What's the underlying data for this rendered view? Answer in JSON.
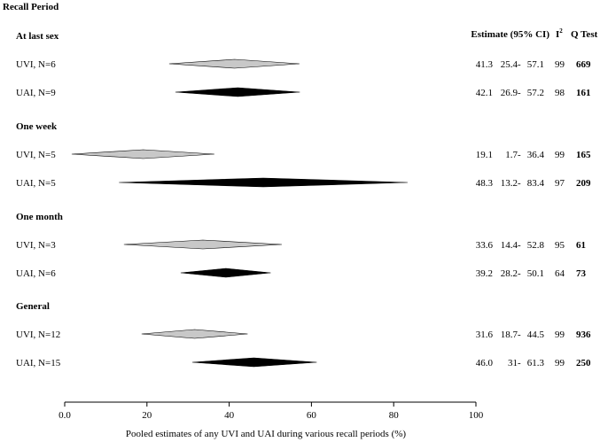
{
  "chart_data": {
    "type": "forest",
    "title": "Recall Period",
    "xlabel": "Pooled estimates of any UVI and UAI during various recall periods (%)",
    "xlim": [
      0,
      100
    ],
    "xticks": [
      "0.0",
      "20",
      "40",
      "60",
      "80",
      "100"
    ],
    "column_headers": {
      "estimate": "Estimate (95% CI)",
      "i2": "I",
      "i2_sup": "2",
      "q": "Q Test"
    },
    "series": [
      {
        "name": "UVI",
        "color": "#c8c8c8"
      },
      {
        "name": "UAI",
        "color": "#000000"
      }
    ],
    "groups": [
      {
        "label": "At last sex",
        "rows": [
          {
            "label": "UVI, N=6",
            "series": "UVI",
            "estimate": 41.3,
            "low": 25.4,
            "high": 57.1,
            "est_text": "41.3",
            "low_text": "25.4",
            "high_text": "57.1",
            "i2": "99",
            "q": "669"
          },
          {
            "label": "UAI, N=9",
            "series": "UAI",
            "estimate": 42.1,
            "low": 26.9,
            "high": 57.2,
            "est_text": "42.1",
            "low_text": "26.9",
            "high_text": "57.2",
            "i2": "98",
            "q": "161"
          }
        ]
      },
      {
        "label": "One week",
        "rows": [
          {
            "label": "UVI, N=5",
            "series": "UVI",
            "estimate": 19.1,
            "low": 1.7,
            "high": 36.4,
            "est_text": "19.1",
            "low_text": "1.7",
            "high_text": "36.4",
            "i2": "99",
            "q": "165"
          },
          {
            "label": "UAI, N=5",
            "series": "UAI",
            "estimate": 48.3,
            "low": 13.2,
            "high": 83.4,
            "est_text": "48.3",
            "low_text": "13.2",
            "high_text": "83.4",
            "i2": "97",
            "q": "209"
          }
        ]
      },
      {
        "label": "One month",
        "rows": [
          {
            "label": "UVI, N=3",
            "series": "UVI",
            "estimate": 33.6,
            "low": 14.4,
            "high": 52.8,
            "est_text": "33.6",
            "low_text": "14.4",
            "high_text": "52.8",
            "i2": "95",
            "q": "61"
          },
          {
            "label": "UAI, N=6",
            "series": "UAI",
            "estimate": 39.2,
            "low": 28.2,
            "high": 50.1,
            "est_text": "39.2",
            "low_text": "28.2",
            "high_text": "50.1",
            "i2": "64",
            "q": "73"
          }
        ]
      },
      {
        "label": "General",
        "rows": [
          {
            "label": "UVI, N=12",
            "series": "UVI",
            "estimate": 31.6,
            "low": 18.7,
            "high": 44.5,
            "est_text": "31.6",
            "low_text": "18.7",
            "high_text": "44.5",
            "i2": "99",
            "q": "936"
          },
          {
            "label": "UAI, N=15",
            "series": "UAI",
            "estimate": 46.0,
            "low": 31,
            "high": 61.3,
            "est_text": "46.0",
            "low_text": "31",
            "high_text": "61.3",
            "i2": "99",
            "q": "250"
          }
        ]
      }
    ]
  }
}
